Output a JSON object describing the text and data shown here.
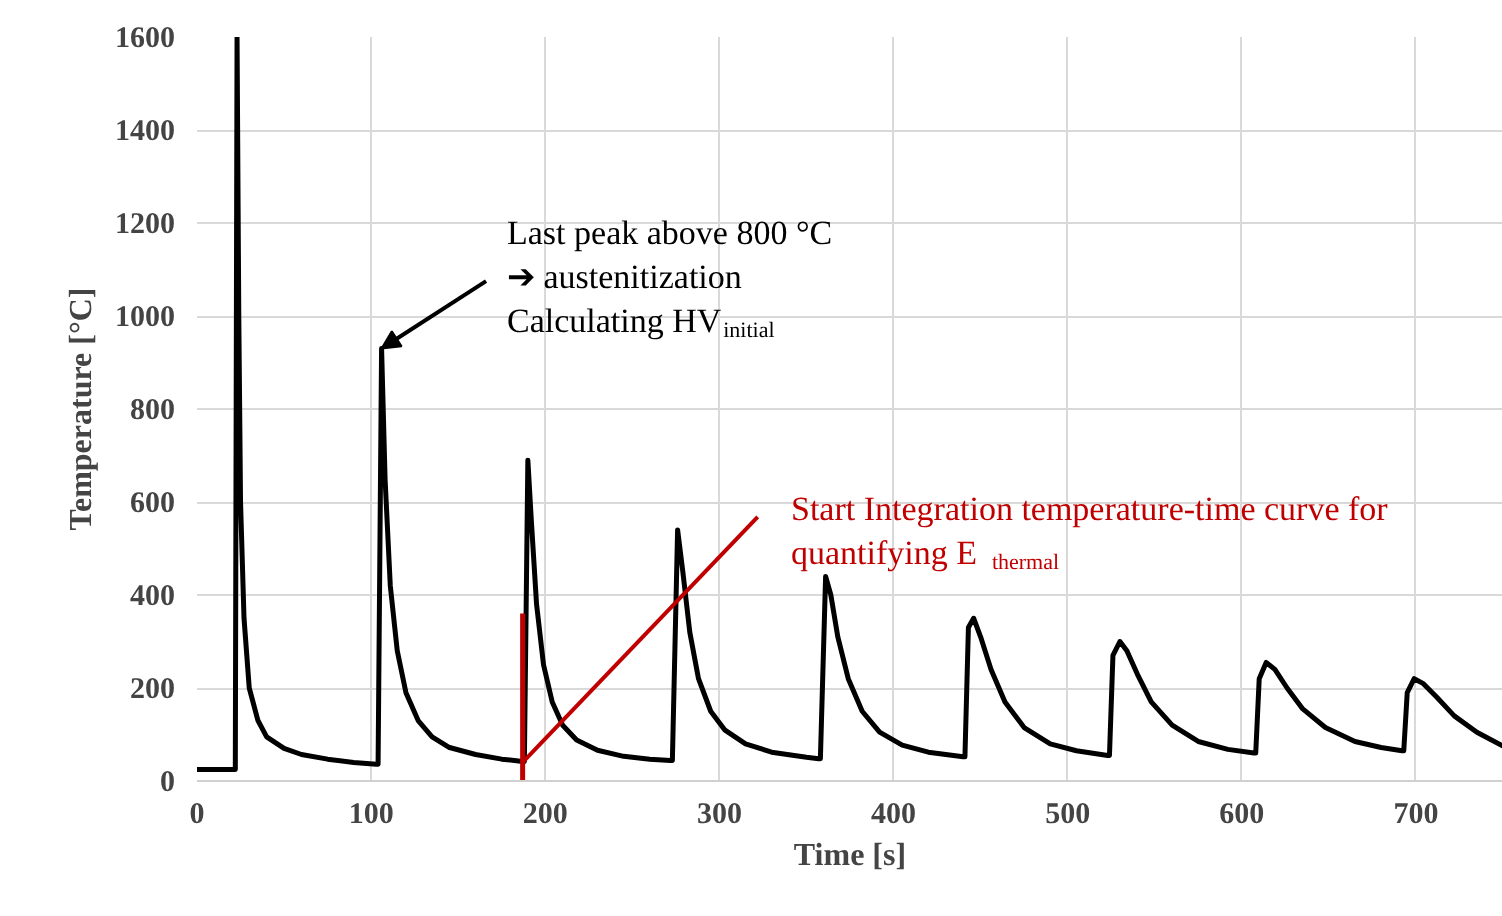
{
  "chart_data": {
    "type": "line",
    "xlabel": "Time [s]",
    "ylabel": "Temperature [°C]",
    "xlim": [
      0,
      750
    ],
    "ylim": [
      0,
      1600
    ],
    "xticks": [
      0,
      100,
      200,
      300,
      400,
      500,
      600,
      700
    ],
    "yticks": [
      0,
      200,
      400,
      600,
      800,
      1000,
      1200,
      1400,
      1600
    ],
    "grid": true,
    "marker": "none",
    "line_style": "solid",
    "series": [
      {
        "color": "#000000",
        "x": [
          0,
          22,
          23,
          24,
          25,
          27,
          30,
          35,
          40,
          50,
          60,
          75,
          90,
          103,
          104,
          106,
          108,
          111,
          115,
          120,
          127,
          135,
          145,
          160,
          175,
          187,
          188,
          190,
          192,
          195,
          199,
          204,
          210,
          218,
          230,
          245,
          260,
          272,
          273,
          276,
          279,
          283,
          288,
          295,
          303,
          315,
          330,
          350,
          357,
          358,
          361,
          364,
          368,
          374,
          382,
          392,
          405,
          420,
          440,
          441,
          443,
          446,
          450,
          456,
          464,
          475,
          490,
          505,
          523,
          524,
          526,
          530,
          534,
          540,
          548,
          560,
          575,
          592,
          607,
          608,
          610,
          614,
          619,
          626,
          635,
          648,
          665,
          680,
          692,
          693,
          695,
          699,
          704,
          712,
          722,
          735,
          750
        ],
        "values": [
          25,
          25,
          1600,
          1000,
          600,
          350,
          200,
          130,
          95,
          70,
          57,
          47,
          40,
          36,
          36,
          930,
          650,
          420,
          280,
          190,
          130,
          95,
          72,
          57,
          47,
          42,
          42,
          690,
          560,
          380,
          250,
          170,
          120,
          88,
          66,
          53,
          47,
          44,
          44,
          540,
          450,
          320,
          220,
          150,
          110,
          80,
          62,
          51,
          48,
          48,
          440,
          400,
          310,
          220,
          150,
          105,
          77,
          62,
          52,
          52,
          330,
          350,
          310,
          240,
          170,
          115,
          80,
          65,
          55,
          55,
          270,
          300,
          280,
          230,
          170,
          120,
          85,
          68,
          60,
          60,
          220,
          255,
          240,
          200,
          155,
          115,
          85,
          72,
          65,
          65,
          190,
          220,
          210,
          180,
          140,
          105,
          75
        ]
      }
    ],
    "annotations": [
      {
        "text": "Last peak above 800 °C\n➔ austenitization\nCalculating HV$_{initial}$",
        "x": 106,
        "y": 930
      },
      {
        "text": "Start Integration temperature-time curve for\nquantifying E$_{thermal}$",
        "x": 187,
        "y": 40
      }
    ],
    "ref_lines": [
      {
        "axis": "x",
        "value": 187,
        "label": null,
        "color": "#c00000"
      }
    ]
  }
}
